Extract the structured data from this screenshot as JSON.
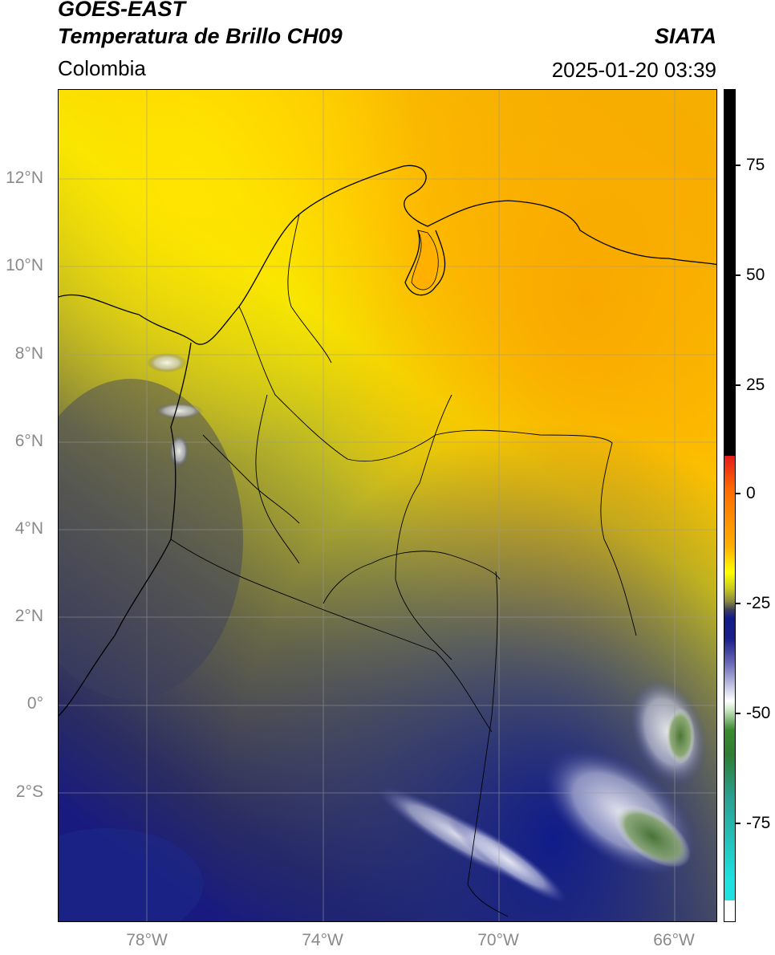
{
  "header": {
    "title_line1": "GOES-EAST",
    "title_line2": "Temperatura de Brillo CH09",
    "right_title": "SIATA",
    "region": "Colombia",
    "timestamp": "2025-01-20 03:39"
  },
  "map": {
    "lat_labels": [
      "12°N",
      "10°N",
      "8°N",
      "6°N",
      "4°N",
      "2°N",
      "0°",
      "2°S"
    ],
    "lon_labels": [
      "78°W",
      "74°W",
      "70°W",
      "66°W"
    ]
  },
  "colorbar": {
    "tick_labels": [
      "75",
      "50",
      "25",
      "0",
      "-25",
      "-50",
      "-75"
    ],
    "colors": [
      "#000000",
      "#e31a1c",
      "#ff9900",
      "#ffff00",
      "#a0a030",
      "#202080",
      "#ffffff",
      "#2e7d32",
      "#20d0d0"
    ]
  }
}
